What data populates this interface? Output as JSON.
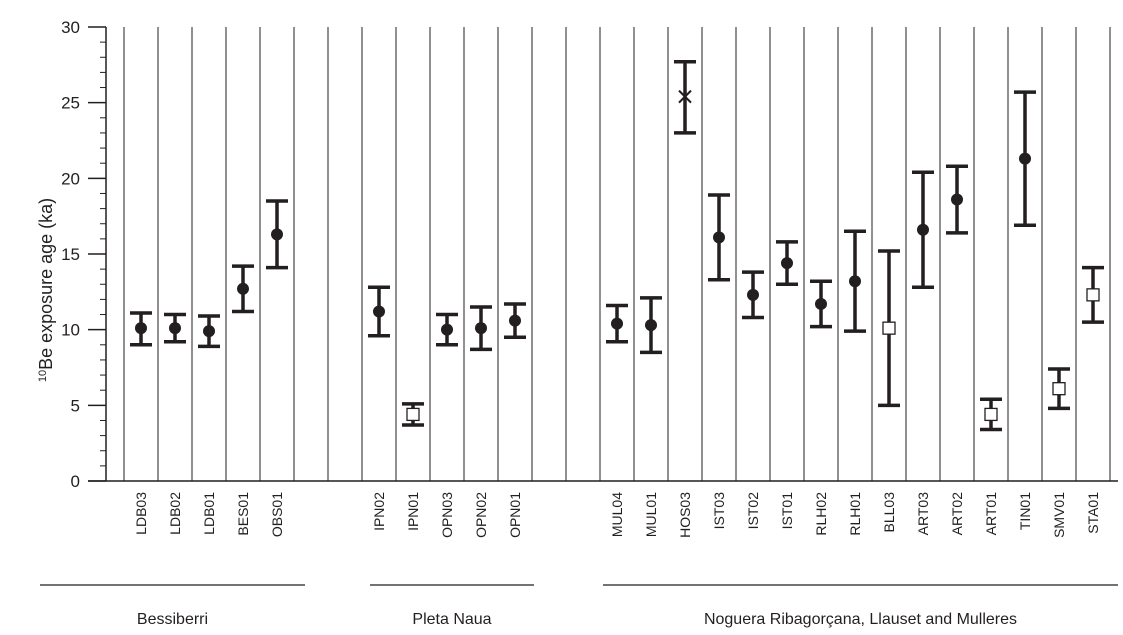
{
  "chart_data": {
    "type": "scatter",
    "ylabel_sup": "10",
    "ylabel": "Be exposure age (ka)",
    "ylim": [
      0,
      30
    ],
    "yticks": [
      0,
      5,
      10,
      15,
      20,
      25,
      30
    ],
    "grid": "vertical",
    "marker_legend": {
      "circle": "filled",
      "square": "open",
      "x": "cross"
    },
    "groups": [
      {
        "name": "Bessiberri",
        "samples": [
          {
            "label": "LDB03",
            "age": 10.1,
            "err_low": 9.0,
            "err_high": 11.1,
            "marker": "circle"
          },
          {
            "label": "LDB02",
            "age": 10.1,
            "err_low": 9.2,
            "err_high": 11.0,
            "marker": "circle"
          },
          {
            "label": "LDB01",
            "age": 9.9,
            "err_low": 8.9,
            "err_high": 10.9,
            "marker": "circle"
          },
          {
            "label": "BES01",
            "age": 12.7,
            "err_low": 11.2,
            "err_high": 14.2,
            "marker": "circle"
          },
          {
            "label": "OBS01",
            "age": 16.3,
            "err_low": 14.1,
            "err_high": 18.5,
            "marker": "circle"
          }
        ]
      },
      {
        "name": "Pleta Naua",
        "samples": [
          {
            "label": "IPN02",
            "age": 11.2,
            "err_low": 9.6,
            "err_high": 12.8,
            "marker": "circle"
          },
          {
            "label": "IPN01",
            "age": 4.4,
            "err_low": 3.7,
            "err_high": 5.1,
            "marker": "square"
          },
          {
            "label": "OPN03",
            "age": 10.0,
            "err_low": 9.0,
            "err_high": 11.0,
            "marker": "circle"
          },
          {
            "label": "OPN02",
            "age": 10.1,
            "err_low": 8.7,
            "err_high": 11.5,
            "marker": "circle"
          },
          {
            "label": "OPN01",
            "age": 10.6,
            "err_low": 9.5,
            "err_high": 11.7,
            "marker": "circle"
          }
        ]
      },
      {
        "name": "Noguera Ribagorçana, Llauset and Mulleres",
        "samples": [
          {
            "label": "MUL04",
            "age": 10.4,
            "err_low": 9.2,
            "err_high": 11.6,
            "marker": "circle"
          },
          {
            "label": "MUL01",
            "age": 10.3,
            "err_low": 8.5,
            "err_high": 12.1,
            "marker": "circle"
          },
          {
            "label": "HOS03",
            "age": 25.4,
            "err_low": 23.0,
            "err_high": 27.7,
            "marker": "x"
          },
          {
            "label": "IST03",
            "age": 16.1,
            "err_low": 13.3,
            "err_high": 18.9,
            "marker": "circle"
          },
          {
            "label": "IST02",
            "age": 12.3,
            "err_low": 10.8,
            "err_high": 13.8,
            "marker": "circle"
          },
          {
            "label": "IST01",
            "age": 14.4,
            "err_low": 13.0,
            "err_high": 15.8,
            "marker": "circle"
          },
          {
            "label": "RLH02",
            "age": 11.7,
            "err_low": 10.2,
            "err_high": 13.2,
            "marker": "circle"
          },
          {
            "label": "RLH01",
            "age": 13.2,
            "err_low": 9.9,
            "err_high": 16.5,
            "marker": "circle"
          },
          {
            "label": "BLL03",
            "age": 10.1,
            "err_low": 5.0,
            "err_high": 15.2,
            "marker": "square"
          },
          {
            "label": "ART03",
            "age": 16.6,
            "err_low": 12.8,
            "err_high": 20.4,
            "marker": "circle"
          },
          {
            "label": "ART02",
            "age": 18.6,
            "err_low": 16.4,
            "err_high": 20.8,
            "marker": "circle"
          },
          {
            "label": "ART01",
            "age": 4.4,
            "err_low": 3.4,
            "err_high": 5.4,
            "marker": "square"
          },
          {
            "label": "TIN01",
            "age": 21.3,
            "err_low": 16.9,
            "err_high": 25.7,
            "marker": "circle"
          },
          {
            "label": "SMV01",
            "age": 6.1,
            "err_low": 4.8,
            "err_high": 7.4,
            "marker": "square"
          },
          {
            "label": "STA01",
            "age": 12.3,
            "err_low": 10.5,
            "err_high": 14.1,
            "marker": "square"
          }
        ]
      }
    ],
    "colors": {
      "ink": "#231f20",
      "marker_fill_open": "#ffffff"
    }
  }
}
